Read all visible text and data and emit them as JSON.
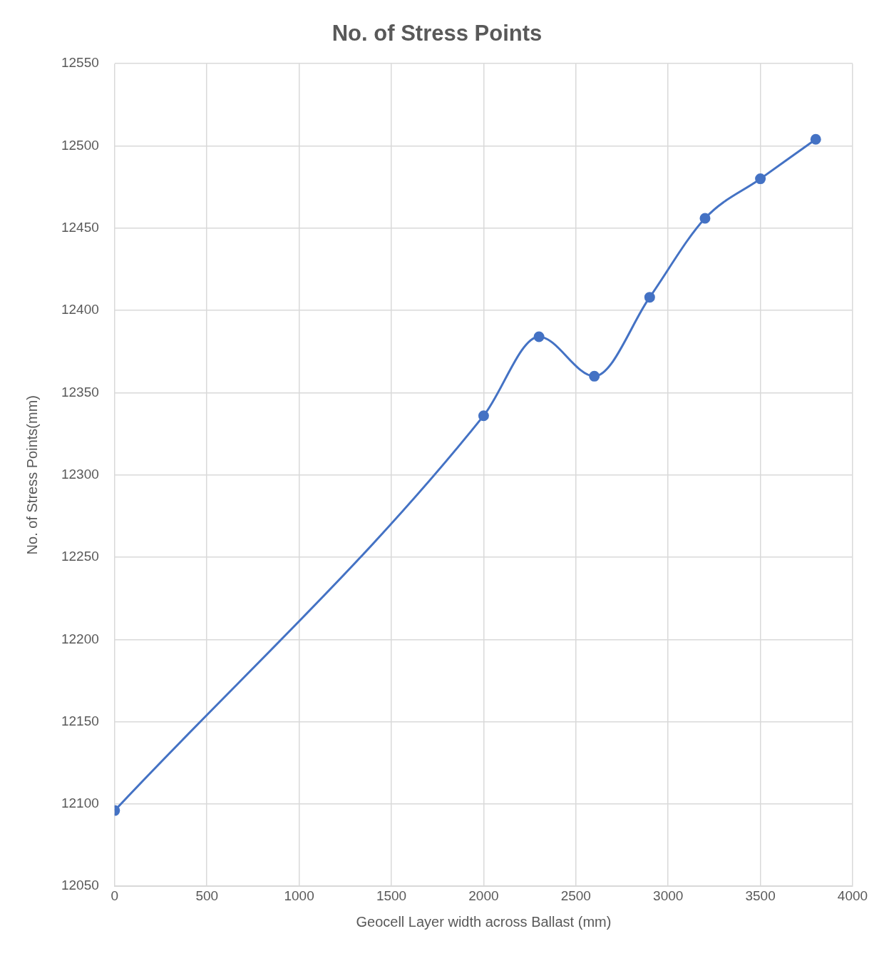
{
  "chart_data": {
    "type": "line",
    "title": "No. of Stress Points",
    "xlabel": "Geocell Layer width across Ballast (mm)",
    "ylabel": "No. of Stress Points(mm)",
    "x": [
      0,
      2000,
      2300,
      2600,
      2900,
      3200,
      3500,
      3800
    ],
    "series": [
      {
        "color": "#4472c4",
        "values": [
          12096,
          12336,
          12384,
          12360,
          12408,
          12456,
          12480,
          12504
        ]
      }
    ],
    "xlim": [
      0,
      4000
    ],
    "xticks": [
      0,
      500,
      1000,
      1500,
      2000,
      2500,
      3000,
      3500,
      4000
    ],
    "ylim": [
      12050,
      12550
    ],
    "yticks": [
      12050,
      12100,
      12150,
      12200,
      12250,
      12300,
      12350,
      12400,
      12450,
      12500,
      12550
    ],
    "grid": true,
    "legend": false,
    "marker": "circle",
    "line_style": "solid"
  }
}
